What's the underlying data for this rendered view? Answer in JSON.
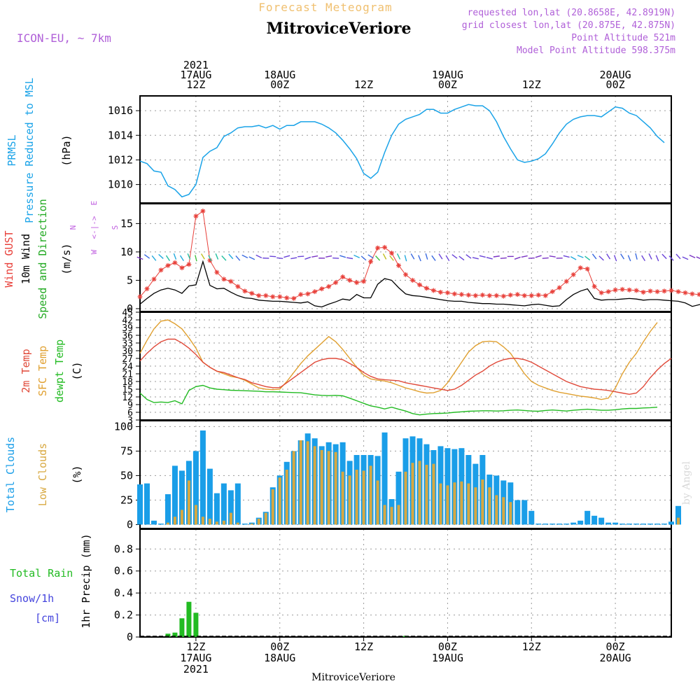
{
  "header": {
    "forecast_title": "Forecast Meteogram",
    "station": "MitroviceVeriore",
    "model": "ICON-EU, ~ 7km",
    "requested": "requested lon,lat (20.8658E, 42.8919N)",
    "grid": "grid closest lon,lat (20.875E, 42.875N)",
    "altitude": "Point Altitude 521m",
    "model_altitude": "Model Point Altitude 598.375m",
    "footer_station": "MitroviceVeriore",
    "watermark": "by Angel"
  },
  "colors": {
    "pressure": "#1aa3e8",
    "gust": "#e8403a",
    "wind": "#000000",
    "direction_label": "#22aa22",
    "temp2m": "#e04a3a",
    "sfc_temp": "#e0a030",
    "dewpoint": "#22bb22",
    "total_clouds": "#1a9ee8",
    "low_clouds": "#d8a840",
    "rain": "#22bb22",
    "snow": "#4444dd",
    "purple": "#b060d8",
    "orange": "#f0c070",
    "compass": "#c060e0"
  },
  "time_axis": {
    "top_labels": [
      {
        "lines": [
          "2021",
          "17AUG",
          "12Z"
        ],
        "hour": 12
      },
      {
        "lines": [
          "18AUG",
          "00Z"
        ],
        "hour": 24
      },
      {
        "lines": [
          "12Z"
        ],
        "hour": 36
      },
      {
        "lines": [
          "19AUG",
          "00Z"
        ],
        "hour": 48
      },
      {
        "lines": [
          "12Z"
        ],
        "hour": 60
      },
      {
        "lines": [
          "20AUG",
          "00Z"
        ],
        "hour": 72
      }
    ],
    "bottom_labels": [
      {
        "lines": [
          "12Z",
          "17AUG",
          "2021"
        ],
        "hour": 12
      },
      {
        "lines": [
          "00Z",
          "18AUG"
        ],
        "hour": 24
      },
      {
        "lines": [
          "12Z"
        ],
        "hour": 36
      },
      {
        "lines": [
          "00Z",
          "19AUG"
        ],
        "hour": 48
      },
      {
        "lines": [
          "12Z"
        ],
        "hour": 60
      },
      {
        "lines": [
          "00Z",
          "20AUG"
        ],
        "hour": 72
      }
    ]
  },
  "chart_data": [
    {
      "type": "line",
      "panel": "pressure",
      "ylabel_lines": [
        "PRMSL",
        "Pressure Reduced to MSL"
      ],
      "unit": "(hPa)",
      "yticks": [
        1010,
        1012,
        1014,
        1016
      ],
      "ylim": [
        1008.5,
        1017.2
      ],
      "series": [
        {
          "name": "PRMSL",
          "values": [
            1011.9,
            1011.7,
            1011.1,
            1011.0,
            1009.9,
            1009.6,
            1009.0,
            1009.2,
            1010.0,
            1012.2,
            1012.7,
            1013.0,
            1013.9,
            1014.2,
            1014.6,
            1014.7,
            1014.7,
            1014.8,
            1014.6,
            1014.8,
            1014.5,
            1014.8,
            1014.8,
            1015.1,
            1015.1,
            1015.1,
            1014.9,
            1014.6,
            1014.2,
            1013.6,
            1012.9,
            1012.1,
            1010.9,
            1010.5,
            1011.0,
            1012.6,
            1014.0,
            1014.9,
            1015.3,
            1015.5,
            1015.7,
            1016.1,
            1016.1,
            1015.8,
            1015.8,
            1016.1,
            1016.3,
            1016.5,
            1016.4,
            1016.4,
            1016.0,
            1015.1,
            1013.9,
            1012.9,
            1012.0,
            1011.8,
            1011.9,
            1012.1,
            1012.5,
            1013.3,
            1014.2,
            1014.9,
            1015.3,
            1015.5,
            1015.6,
            1015.6,
            1015.5,
            1015.9,
            1016.3,
            1016.2,
            1015.8,
            1015.6,
            1015.1,
            1014.6,
            1013.9,
            1013.4
          ]
        }
      ]
    },
    {
      "type": "line",
      "panel": "wind",
      "ylabel_lines": [
        "Wind GUST",
        "10m Wind",
        "Speed and Direction"
      ],
      "unit": "(m/s)",
      "compass": {
        "n": "N",
        "e": "E",
        "s": "S",
        "w": "W"
      },
      "yticks": [
        0,
        5,
        10,
        15
      ],
      "ylim": [
        -0.5,
        18.5
      ],
      "series": [
        {
          "name": "Wind GUST",
          "values": [
            2.1,
            3.5,
            5.2,
            6.8,
            7.6,
            8.1,
            7.2,
            7.8,
            16.3,
            17.2,
            8.5,
            6.4,
            5.2,
            4.8,
            3.9,
            3.1,
            2.7,
            2.3,
            2.3,
            2.1,
            2.1,
            1.9,
            1.8,
            2.5,
            2.6,
            3.0,
            3.5,
            3.9,
            4.6,
            5.6,
            5.0,
            4.6,
            4.8,
            8.3,
            10.7,
            10.8,
            9.8,
            7.6,
            6.0,
            5.0,
            4.2,
            3.6,
            3.2,
            2.9,
            2.8,
            2.6,
            2.5,
            2.4,
            2.3,
            2.4,
            2.3,
            2.3,
            2.2,
            2.4,
            2.5,
            2.3,
            2.3,
            2.4,
            2.3,
            3.0,
            3.7,
            4.8,
            6.0,
            7.2,
            7.0,
            3.9,
            2.8,
            3.0,
            3.3,
            3.4,
            3.3,
            3.2,
            2.9,
            3.1,
            3.0,
            3.1,
            3.2,
            3.0,
            2.8,
            2.6,
            2.5,
            2.6,
            3.0,
            4.0,
            5.0
          ]
        },
        {
          "name": "10m Wind",
          "values": [
            0.8,
            1.8,
            2.7,
            3.3,
            3.6,
            3.3,
            2.7,
            4.0,
            4.2,
            8.3,
            4.1,
            3.5,
            3.6,
            2.9,
            2.3,
            1.9,
            1.8,
            1.5,
            1.4,
            1.3,
            1.3,
            1.2,
            1.1,
            1.0,
            1.2,
            0.5,
            0.3,
            0.8,
            1.2,
            1.7,
            1.5,
            2.5,
            1.9,
            1.9,
            4.3,
            5.3,
            5.0,
            3.7,
            2.6,
            2.3,
            2.2,
            2.0,
            1.8,
            1.6,
            1.4,
            1.3,
            1.3,
            1.1,
            1.0,
            0.9,
            0.9,
            0.8,
            0.8,
            0.7,
            0.6,
            0.5,
            0.7,
            0.8,
            0.6,
            0.4,
            0.5,
            1.6,
            2.5,
            3.1,
            3.5,
            1.8,
            1.5,
            1.6,
            1.6,
            1.7,
            1.8,
            1.7,
            1.5,
            1.6,
            1.6,
            1.5,
            1.4,
            1.3,
            1.0,
            0.4,
            0.7,
            1.0,
            1.3,
            1.8,
            2.2
          ]
        }
      ]
    },
    {
      "type": "line",
      "panel": "temperature",
      "ylabel_lines": [
        "2m Temp",
        "SFC Temp",
        "dewpt Temp"
      ],
      "unit": "(C)",
      "yticks": [
        3,
        6,
        9,
        12,
        15,
        18,
        21,
        24,
        27,
        30,
        33,
        36,
        39,
        42,
        45
      ],
      "ylim": [
        3,
        45
      ],
      "series": [
        {
          "name": "2m Temp",
          "values": [
            26.0,
            29.0,
            31.5,
            33.5,
            34.5,
            34.5,
            33.0,
            31.0,
            28.5,
            25.5,
            23.5,
            22.0,
            21.5,
            20.5,
            19.5,
            18.8,
            17.5,
            16.8,
            16.0,
            15.6,
            15.6,
            17.5,
            19.5,
            21.5,
            23.5,
            25.5,
            26.5,
            27.0,
            27.0,
            26.5,
            25.0,
            23.5,
            21.5,
            20.0,
            19.0,
            18.7,
            18.5,
            18.3,
            17.5,
            17.0,
            16.5,
            16.0,
            15.5,
            15.0,
            14.5,
            15.0,
            16.5,
            18.5,
            20.5,
            22.0,
            24.0,
            25.5,
            26.5,
            27.0,
            27.0,
            26.5,
            25.5,
            24.0,
            22.5,
            21.0,
            19.5,
            18.0,
            17.0,
            16.0,
            15.5,
            15.0,
            14.8,
            14.5,
            14.0,
            13.5,
            13.0,
            13.5,
            16.0,
            19.5,
            22.5,
            25.0,
            27.0
          ]
        },
        {
          "name": "SFC Temp",
          "values": [
            29.0,
            34.0,
            38.5,
            41.5,
            42.0,
            40.5,
            38.5,
            35.0,
            31.0,
            25.5,
            23.5,
            22.0,
            21.0,
            20.0,
            19.5,
            18.5,
            17.0,
            15.5,
            15.0,
            14.8,
            15.0,
            18.0,
            21.5,
            25.0,
            28.0,
            30.5,
            33.0,
            35.5,
            33.5,
            30.5,
            27.0,
            23.5,
            20.5,
            19.0,
            18.5,
            18.2,
            17.5,
            16.5,
            15.5,
            14.8,
            14.0,
            13.5,
            13.6,
            14.5,
            17.5,
            21.5,
            25.5,
            29.5,
            32.0,
            33.5,
            33.7,
            33.5,
            31.5,
            29.0,
            25.0,
            21.0,
            18.0,
            16.5,
            15.5,
            14.5,
            13.8,
            13.3,
            12.8,
            12.3,
            12.0,
            11.6,
            11.0,
            11.5,
            15.5,
            21.0,
            25.5,
            29.0,
            33.5,
            37.5,
            41.0
          ]
        },
        {
          "name": "dewpt Temp",
          "values": [
            13.5,
            11.0,
            9.8,
            10.0,
            9.8,
            10.5,
            9.3,
            14.5,
            16.0,
            16.5,
            15.5,
            15.0,
            14.8,
            14.6,
            14.5,
            14.4,
            14.3,
            14.2,
            14.0,
            14.0,
            13.9,
            13.8,
            13.7,
            13.6,
            13.2,
            12.8,
            12.6,
            12.5,
            12.6,
            12.4,
            11.5,
            10.5,
            9.5,
            8.5,
            8.0,
            7.3,
            8.0,
            7.2,
            6.5,
            5.5,
            5.0,
            5.3,
            5.5,
            5.6,
            5.7,
            6.0,
            6.2,
            6.4,
            6.5,
            6.6,
            6.6,
            6.5,
            6.6,
            6.8,
            6.9,
            6.7,
            6.5,
            6.4,
            6.7,
            6.9,
            6.7,
            6.5,
            6.8,
            7.0,
            7.2,
            7.0,
            6.8,
            6.8,
            7.0,
            7.3,
            7.5,
            7.5,
            7.7,
            7.8,
            8.0
          ]
        }
      ]
    },
    {
      "type": "bar",
      "panel": "clouds",
      "ylabel_lines": [
        "Total Clouds",
        "Low Clouds"
      ],
      "unit": "(%)",
      "yticks": [
        0,
        25,
        50,
        75,
        100
      ],
      "ylim": [
        -4,
        106
      ],
      "series": [
        {
          "name": "Total Clouds",
          "values": [
            41,
            42,
            4,
            1,
            31,
            60,
            55,
            65,
            75,
            96,
            57,
            32,
            42,
            35,
            42,
            1,
            2,
            7,
            13,
            38,
            50,
            64,
            75,
            86,
            93,
            88,
            80,
            84,
            82,
            84,
            65,
            71,
            71,
            71,
            70,
            94,
            26,
            54,
            88,
            90,
            88,
            82,
            76,
            80,
            78,
            77,
            78,
            71,
            62,
            71,
            51,
            50,
            45,
            43,
            25,
            25,
            14,
            1,
            1,
            1,
            1,
            1,
            2,
            4,
            14,
            9,
            7,
            2,
            2,
            1,
            1,
            1,
            1,
            1,
            1,
            1,
            3,
            19
          ]
        },
        {
          "name": "Low Clouds",
          "values": [
            0,
            0,
            0,
            0,
            2,
            8,
            15,
            45,
            20,
            8,
            6,
            3,
            4,
            12,
            2,
            0,
            1,
            6,
            12,
            36,
            48,
            56,
            75,
            86,
            85,
            80,
            76,
            75,
            74,
            54,
            50,
            56,
            55,
            60,
            45,
            20,
            18,
            20,
            54,
            63,
            65,
            61,
            62,
            42,
            40,
            43,
            44,
            42,
            38,
            46,
            38,
            30,
            28,
            23,
            0,
            0,
            0,
            0,
            0,
            0,
            0,
            0,
            0,
            0,
            0,
            0,
            0,
            0,
            0,
            0,
            0,
            0,
            0,
            0,
            0,
            0,
            0,
            7
          ]
        }
      ]
    },
    {
      "type": "bar",
      "panel": "precipitation",
      "ylabel_lines": [
        "1hr Precip (mm)"
      ],
      "left_labels": {
        "rain": "Total  Rain",
        "snow1": "Snow/1h",
        "snow2": "[cm]"
      },
      "yticks": [
        0,
        0.2,
        0.4,
        0.6,
        0.8
      ],
      "ylim": [
        0,
        0.98
      ],
      "series": [
        {
          "name": "Total Rain",
          "values": [
            0,
            0,
            0,
            0,
            0.03,
            0.04,
            0.17,
            0.32,
            0.22,
            0,
            0,
            0,
            0,
            0,
            0,
            0,
            0,
            0,
            0,
            0,
            0,
            0,
            0,
            0,
            0,
            0,
            0,
            0,
            0,
            0,
            0,
            0,
            0,
            0,
            0,
            0,
            0,
            0,
            0.01,
            0,
            0,
            0,
            0,
            0,
            0,
            0,
            0,
            0,
            0,
            0,
            0,
            0,
            0,
            0,
            0,
            0,
            0,
            0,
            0,
            0,
            0,
            0,
            0,
            0,
            0,
            0,
            0,
            0,
            0,
            0,
            0,
            0,
            0,
            0,
            0,
            0,
            0
          ]
        }
      ]
    }
  ]
}
